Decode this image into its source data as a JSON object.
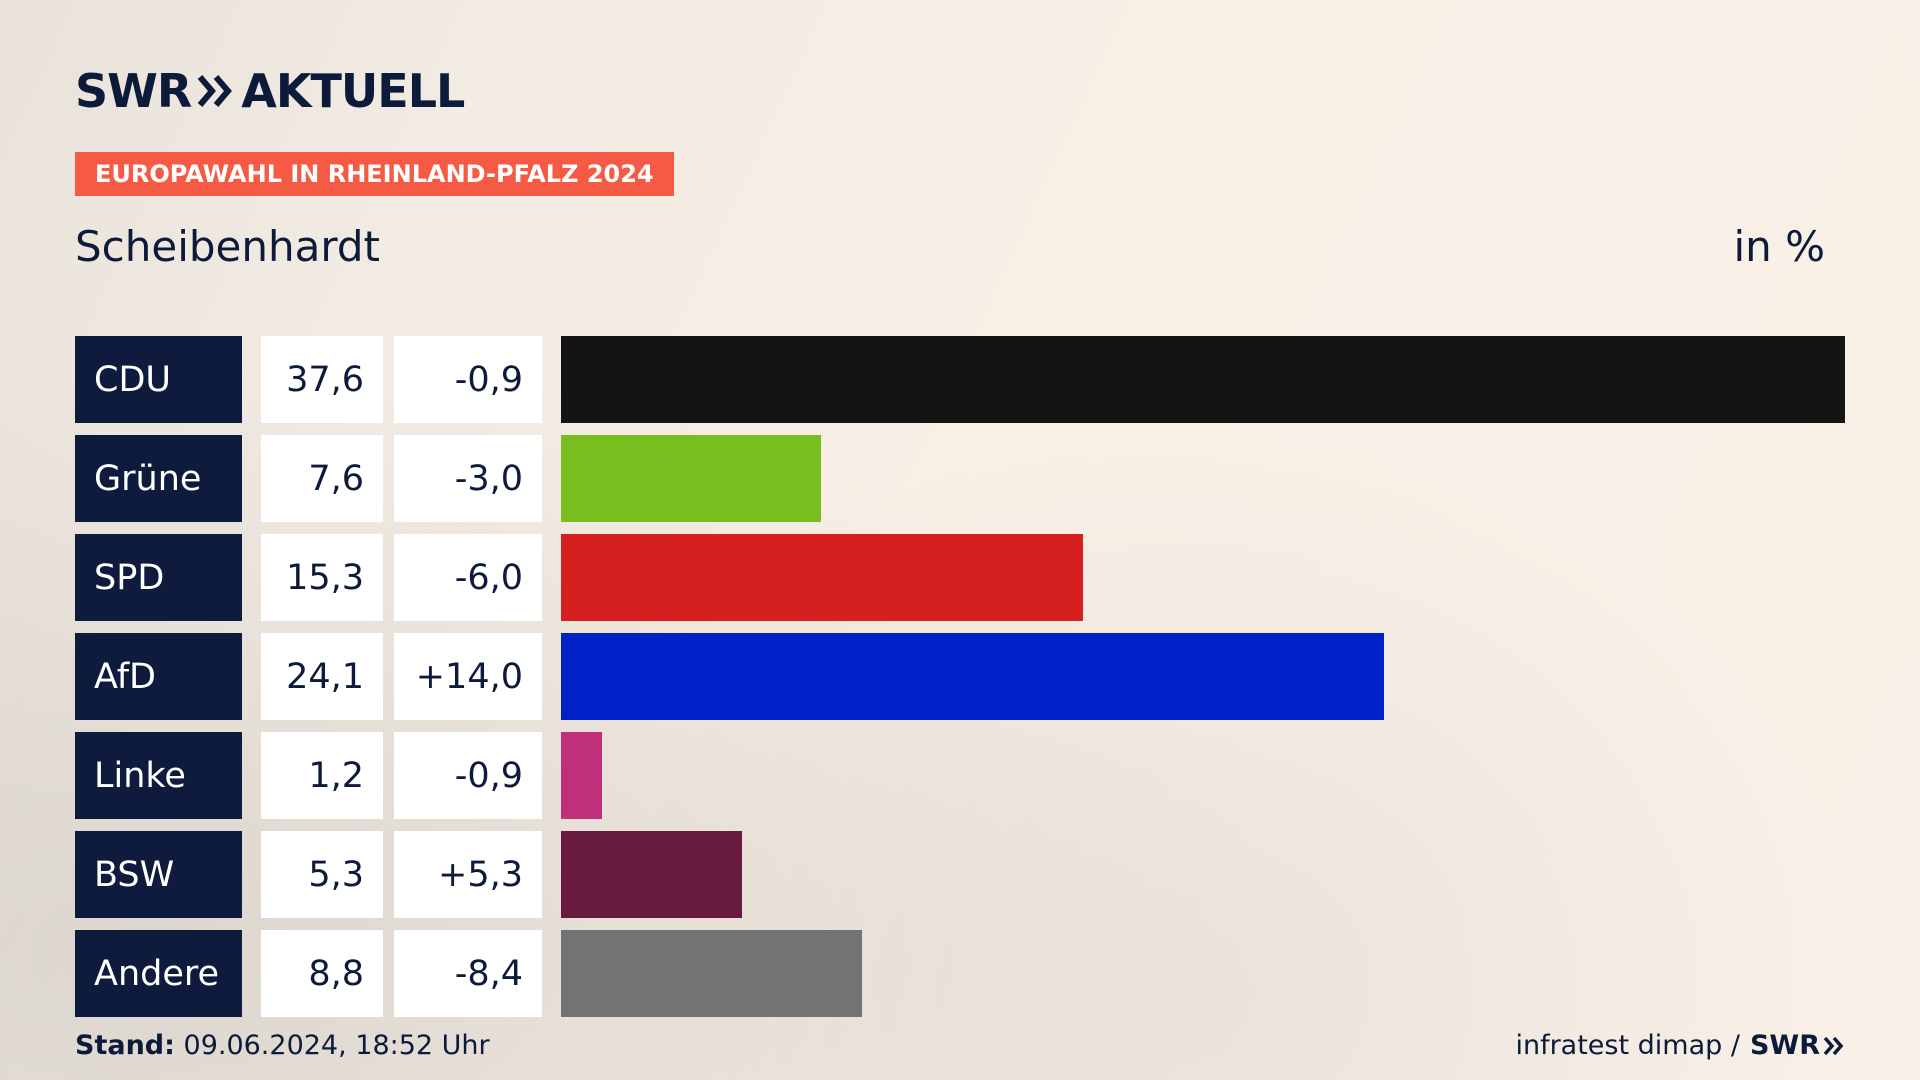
{
  "header": {
    "logo_swr": "SWR",
    "logo_aktuell": "AKTUELL",
    "tag": "EUROPAWAHL IN RHEINLAND-PFALZ 2024",
    "place": "Scheibenhardt",
    "unit": "in %"
  },
  "footer": {
    "stand_label": "Stand:",
    "stand_value": "09.06.2024, 18:52 Uhr",
    "source": "infratest dimap /",
    "brand": "SWR"
  },
  "colors": {
    "accent": "#f55a45",
    "navy": "#0e1b3d"
  },
  "chart_data": {
    "type": "bar",
    "orientation": "horizontal",
    "categories": [
      "CDU",
      "Grüne",
      "SPD",
      "AfD",
      "Linke",
      "BSW",
      "Andere"
    ],
    "values": [
      37.6,
      7.6,
      15.3,
      24.1,
      1.2,
      5.3,
      8.8
    ],
    "value_labels": [
      "37,6",
      "7,6",
      "15,3",
      "24,1",
      "1,2",
      "5,3",
      "8,8"
    ],
    "diff_labels": [
      "-0,9",
      "-3,0",
      "-6,0",
      "+14,0",
      "-0,9",
      "+5,3",
      "-8,4"
    ],
    "diffs": [
      -0.9,
      -3.0,
      -6.0,
      14.0,
      -0.9,
      5.3,
      -8.4
    ],
    "colors": [
      "#141414",
      "#78be1e",
      "#d61f1f",
      "#0020c8",
      "#c0307a",
      "#681b3f",
      "#737373"
    ],
    "xlim": [
      0,
      37.6
    ],
    "grid": false,
    "legend": "none"
  }
}
